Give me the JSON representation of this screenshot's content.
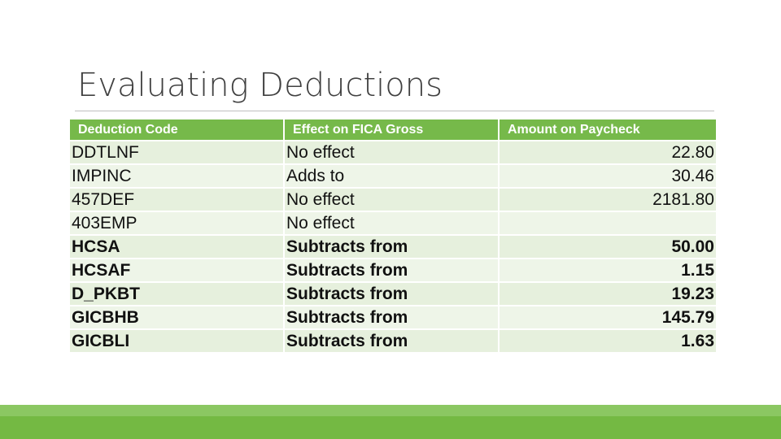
{
  "slide": {
    "title": "Evaluating Deductions"
  },
  "table": {
    "headers": [
      "Deduction Code",
      "Effect on FICA Gross",
      "Amount on Paycheck"
    ],
    "rows": [
      {
        "code": "DDTLNF",
        "effect": "No effect",
        "amount": "22.80"
      },
      {
        "code": "IMPINC",
        "effect": "Adds to",
        "amount": "30.46"
      },
      {
        "code": "457DEF",
        "effect": "No effect",
        "amount": "2181.80"
      },
      {
        "code": "403EMP",
        "effect": "No effect",
        "amount": ""
      },
      {
        "code": "HCSA",
        "effect": "Subtracts from",
        "amount": "50.00"
      },
      {
        "code": "HCSAF",
        "effect": "Subtracts from",
        "amount": "1.15"
      },
      {
        "code": "D_PKBT",
        "effect": "Subtracts from",
        "amount": "19.23"
      },
      {
        "code": "GICBHB",
        "effect": "Subtracts from",
        "amount": "145.79"
      },
      {
        "code": "GICBLI",
        "effect": "Subtracts from",
        "amount": "1.63"
      }
    ]
  },
  "colors": {
    "header_bg": "#76b94a",
    "row_bg": "#e6f0dd",
    "accent_bar": "#74b943"
  }
}
